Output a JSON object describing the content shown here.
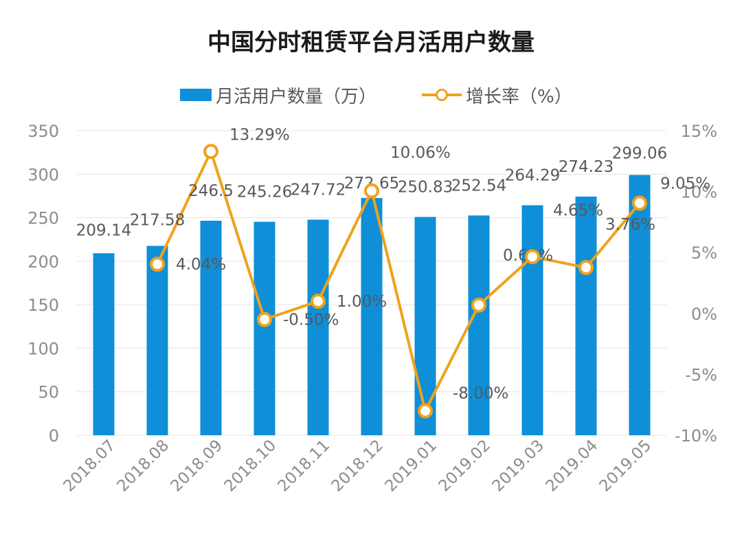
{
  "chart_data": {
    "type": "bar+line",
    "title": "中国分时租赁平台月活用户数量",
    "categories": [
      "2018.07",
      "2018.08",
      "2018.09",
      "2018.10",
      "2018.11",
      "2018.12",
      "2019.01",
      "2019.02",
      "2019.03",
      "2019.04",
      "2019.05"
    ],
    "series": [
      {
        "name": "月活用户数量（万）",
        "type": "bar",
        "axis": "left",
        "values": [
          209.14,
          217.58,
          246.5,
          245.26,
          247.72,
          272.65,
          250.83,
          252.54,
          264.29,
          274.23,
          299.06
        ],
        "labels": [
          "209.14",
          "217.58",
          "246.5",
          "245.26",
          "247.72",
          "272.65",
          "250.83",
          "252.54",
          "264.29",
          "274.23",
          "299.06"
        ],
        "color": "#0f8fd8"
      },
      {
        "name": "增长率（%）",
        "type": "line",
        "axis": "right",
        "values": [
          null,
          4.04,
          13.29,
          -0.5,
          1.0,
          10.06,
          -8.0,
          0.68,
          4.65,
          3.76,
          9.05
        ],
        "labels": [
          "",
          "4.04%",
          "13.29%",
          "-0.50%",
          "1.00%",
          "10.06%",
          "-8.00%",
          "0.68%",
          "4.65%",
          "3.76%",
          "9.05%"
        ],
        "color": "#f0a21a"
      }
    ],
    "y_left": {
      "min": 0,
      "max": 350,
      "ticks": [
        "0",
        "50",
        "100",
        "150",
        "200",
        "250",
        "300",
        "350"
      ]
    },
    "y_right": {
      "min": -10,
      "max": 15,
      "ticks": [
        "-10%",
        "-5%",
        "0%",
        "5%",
        "10%",
        "15%"
      ]
    },
    "legend_position": "top",
    "grid": true
  }
}
